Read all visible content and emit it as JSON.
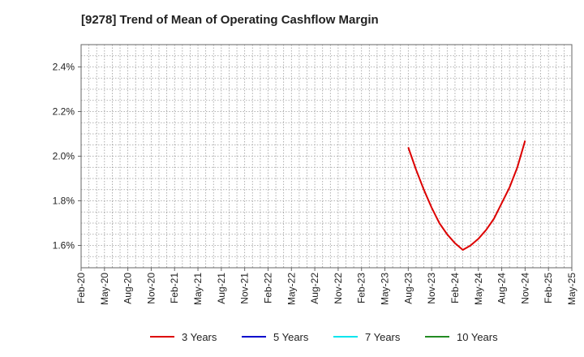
{
  "chart_data": {
    "type": "line",
    "title": "[9278]  Trend of Mean of Operating Cashflow Margin",
    "xlabel": "",
    "ylabel": "",
    "x_ticks": [
      "Feb-20",
      "May-20",
      "Aug-20",
      "Nov-20",
      "Feb-21",
      "May-21",
      "Aug-21",
      "Nov-21",
      "Feb-22",
      "May-22",
      "Aug-22",
      "Nov-22",
      "Feb-23",
      "May-23",
      "Aug-23",
      "Nov-23",
      "Feb-24",
      "May-24",
      "Aug-24",
      "Nov-24",
      "Feb-25",
      "May-25"
    ],
    "y_ticks": [
      "1.6%",
      "1.8%",
      "2.0%",
      "2.2%",
      "2.4%"
    ],
    "y_tick_values": [
      1.6,
      1.8,
      2.0,
      2.2,
      2.4
    ],
    "ylim": [
      1.5,
      2.5
    ],
    "xlim": [
      "Feb-20",
      "May-25"
    ],
    "grid": true,
    "legend_position": "bottom",
    "series": [
      {
        "name": "3 Years",
        "color": "#dd0000",
        "x": [
          "Aug-23",
          "Sep-23",
          "Oct-23",
          "Nov-23",
          "Dec-23",
          "Jan-24",
          "Feb-24",
          "Mar-24",
          "Apr-24",
          "May-24",
          "Jun-24",
          "Jul-24",
          "Aug-24",
          "Sep-24",
          "Oct-24",
          "Nov-24"
        ],
        "values": [
          2.04,
          1.94,
          1.85,
          1.77,
          1.7,
          1.65,
          1.61,
          1.58,
          1.6,
          1.63,
          1.67,
          1.72,
          1.79,
          1.86,
          1.95,
          2.07
        ]
      },
      {
        "name": "5 Years",
        "color": "#0000cc",
        "x": [],
        "values": []
      },
      {
        "name": "7 Years",
        "color": "#00e5ee",
        "x": [],
        "values": []
      },
      {
        "name": "10 Years",
        "color": "#228b22",
        "x": [],
        "values": []
      }
    ]
  }
}
